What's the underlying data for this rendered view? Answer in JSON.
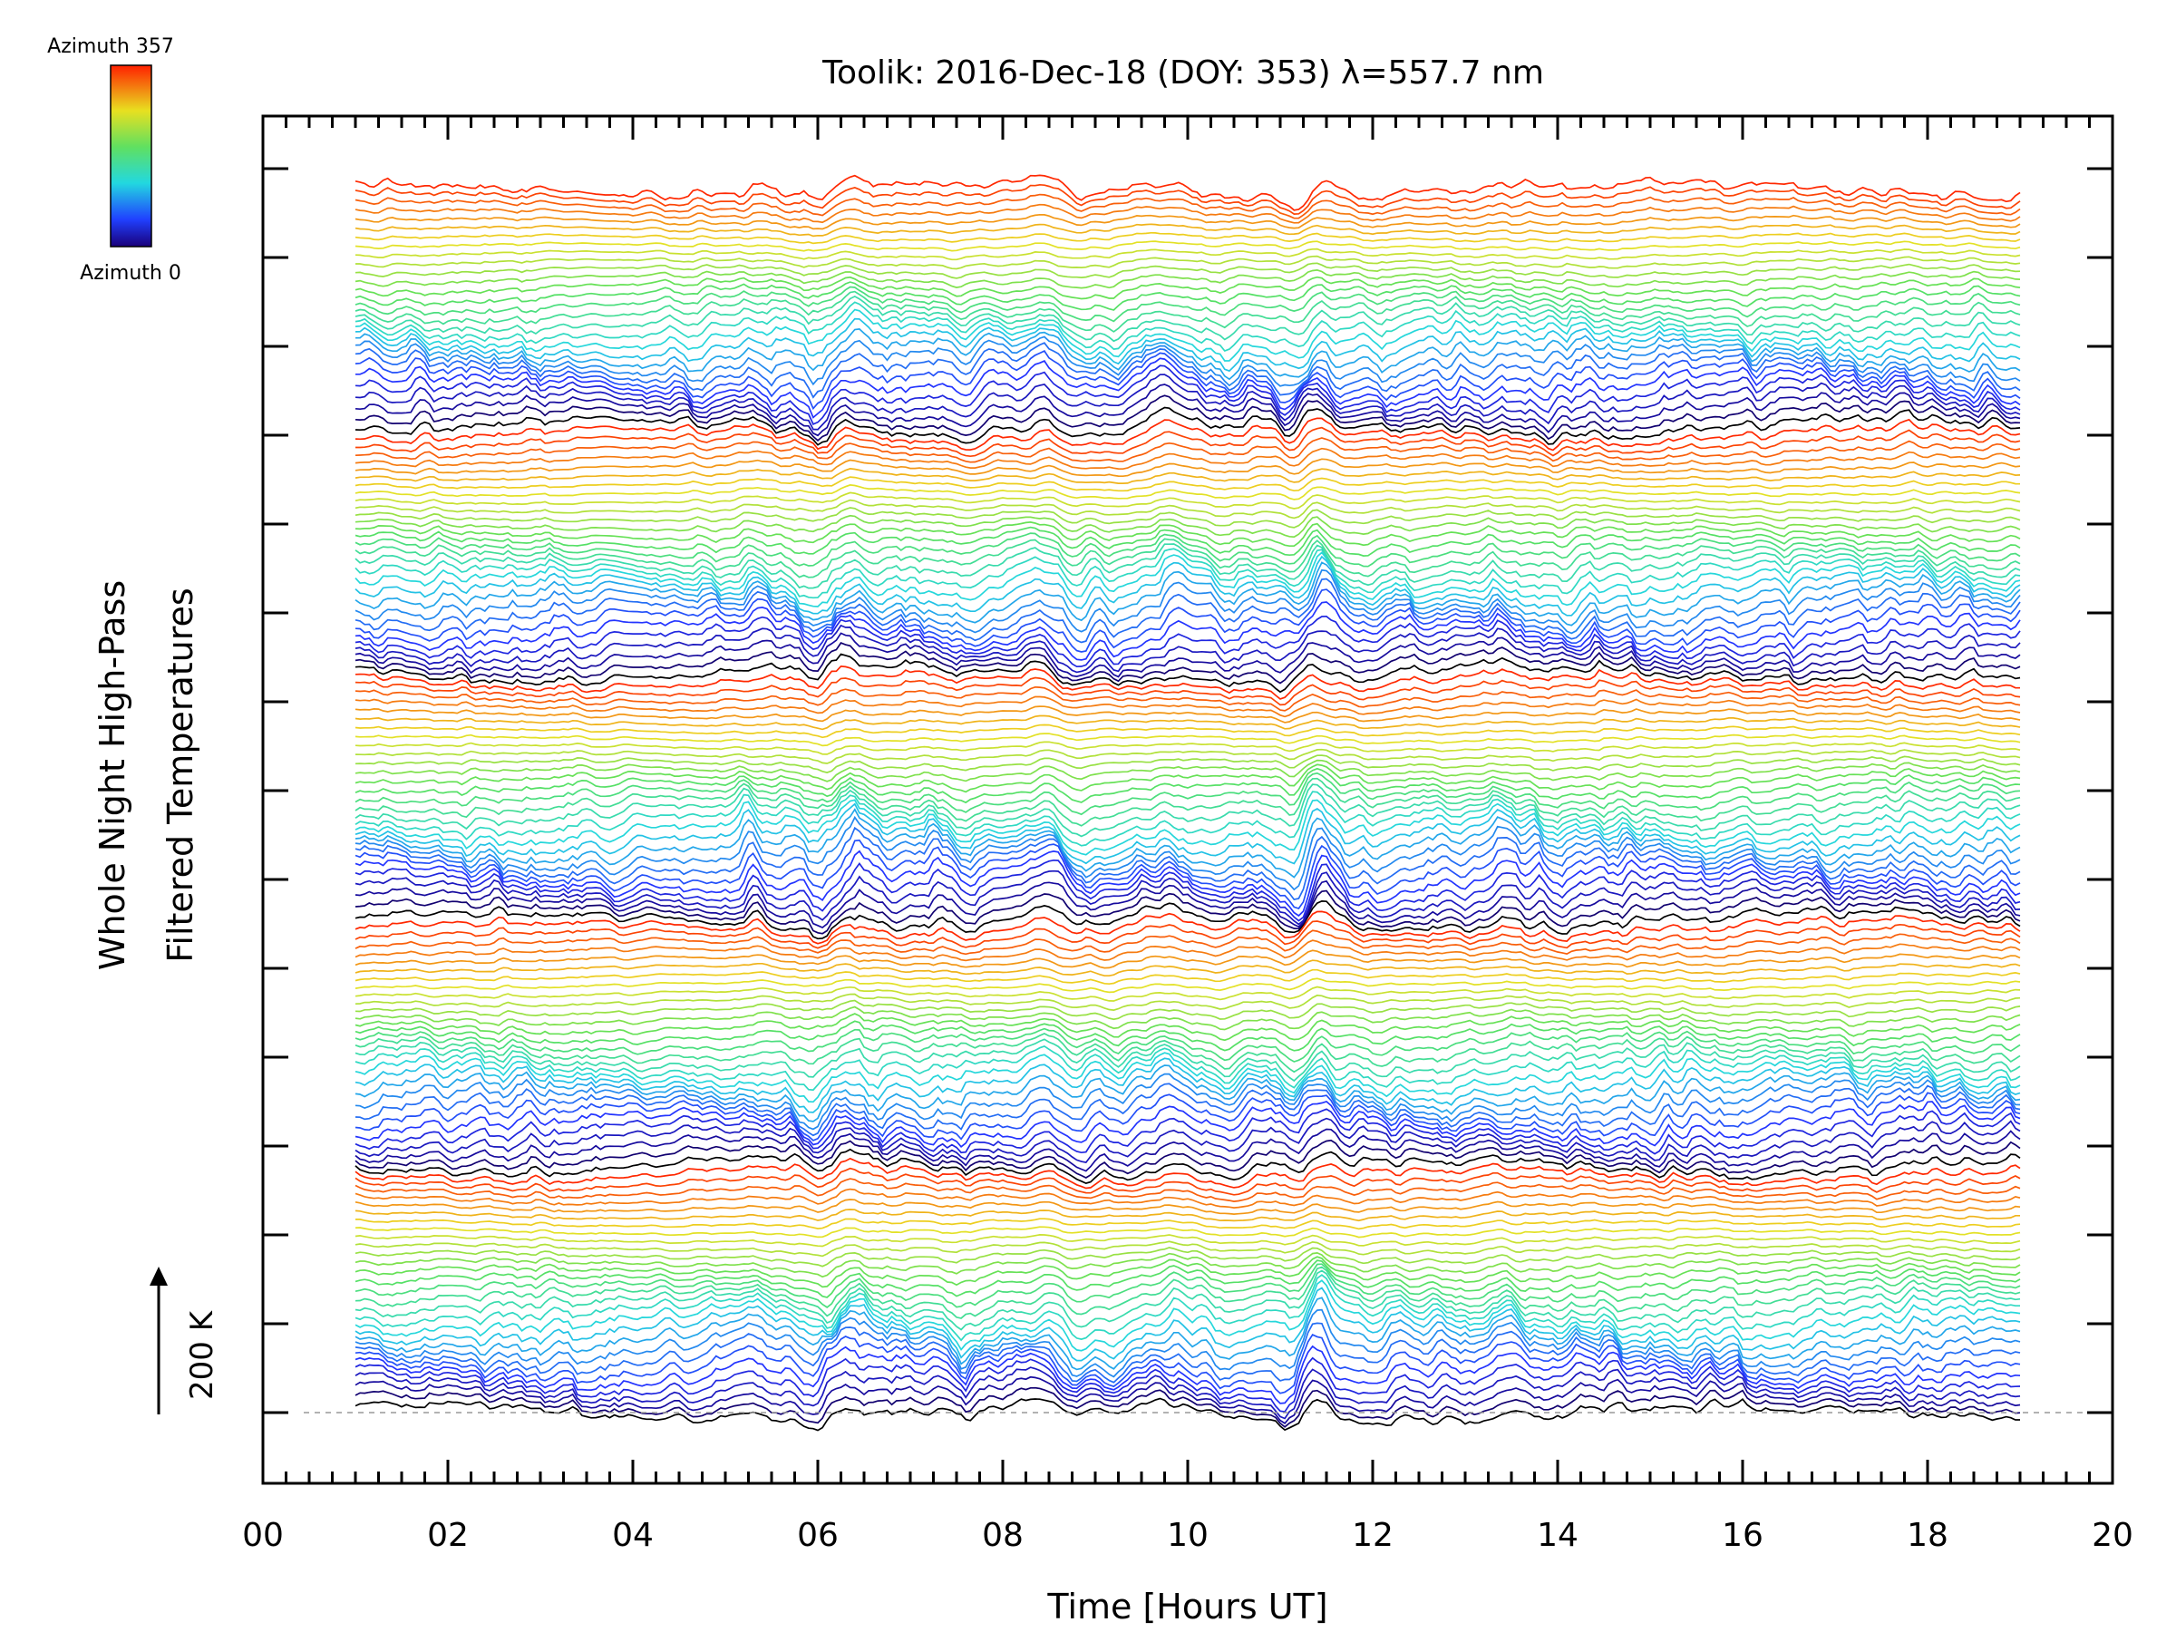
{
  "chart_data": {
    "type": "line",
    "title": "Toolik: 2016-Dec-18 (DOY: 353) λ=557.7 nm",
    "xlabel": "Time [Hours UT]",
    "ylabel_lines": [
      "Whole Night High-Pass",
      "Filtered Temperatures"
    ],
    "xlim": [
      0,
      20
    ],
    "x_tick_labels": [
      "00",
      "02",
      "04",
      "06",
      "08",
      "10",
      "12",
      "14",
      "16",
      "18",
      "20"
    ],
    "data_start_hour": 1.0,
    "data_end_hour": 19.0,
    "scale_bar_label": "200 K",
    "colorbar": {
      "top_label": "Azimuth 357",
      "bottom_label": "Azimuth 0"
    },
    "num_traces": 150,
    "azimuth_range": [
      0,
      357
    ],
    "trace_color_cycle_length": 30,
    "y_major_ticks": 15,
    "baseline_style": "dashed",
    "features": [
      {
        "hour": 5.3,
        "amplitude": 0.8
      },
      {
        "hour": 6.0,
        "amplitude": -1.2
      },
      {
        "hour": 6.35,
        "amplitude": 1.3
      },
      {
        "hour": 7.6,
        "amplitude": -0.9
      },
      {
        "hour": 8.45,
        "amplitude": 1.0
      },
      {
        "hour": 8.8,
        "amplitude": -1.3
      },
      {
        "hour": 9.2,
        "amplitude": -0.9
      },
      {
        "hour": 9.8,
        "amplitude": 0.9
      },
      {
        "hour": 10.4,
        "amplitude": -0.8
      },
      {
        "hour": 11.15,
        "amplitude": -1.5
      },
      {
        "hour": 11.4,
        "amplitude": 2.0
      },
      {
        "hour": 12.0,
        "amplitude": -0.5
      },
      {
        "hour": 13.4,
        "amplitude": 0.6
      },
      {
        "hour": 14.0,
        "amplitude": -0.5
      },
      {
        "hour": 17.8,
        "amplitude": 0.5
      }
    ]
  }
}
